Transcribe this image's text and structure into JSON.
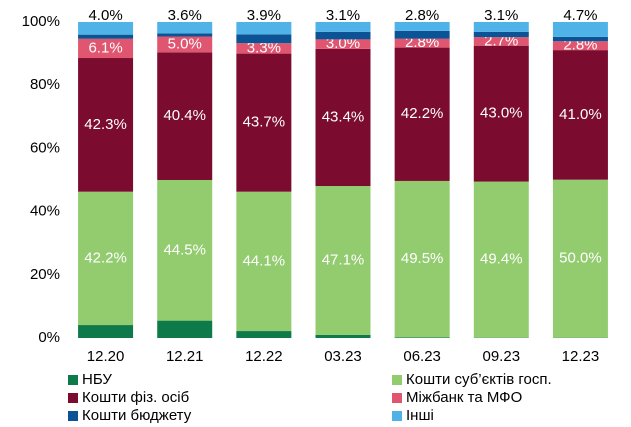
{
  "chart_data": {
    "type": "stacked_bar",
    "categories": [
      "12.20",
      "12.21",
      "12.22",
      "03.23",
      "06.23",
      "09.23",
      "12.23"
    ],
    "ylim": [
      0,
      100
    ],
    "yticks": [
      {
        "value": 0,
        "label": "0%"
      },
      {
        "value": 20,
        "label": "20%"
      },
      {
        "value": 40,
        "label": "40%"
      },
      {
        "value": 60,
        "label": "60%"
      },
      {
        "value": 80,
        "label": "80%"
      },
      {
        "value": 100,
        "label": "100%"
      }
    ],
    "series": [
      {
        "name": "НБУ",
        "color": "#0e7a4a",
        "values": [
          4.1,
          5.5,
          2.2,
          1.0,
          0.2,
          0.1,
          0.1
        ]
      },
      {
        "name": "Кошти суб’єктів госп.",
        "color": "#92cc6f",
        "values": [
          42.2,
          44.5,
          44.1,
          47.1,
          49.5,
          49.4,
          50.0
        ],
        "value_labels": [
          "42.2%",
          "44.5%",
          "44.1%",
          "47.1%",
          "49.5%",
          "49.4%",
          "50.0%"
        ]
      },
      {
        "name": "Кошти фіз. осіб",
        "color": "#7b0b2f",
        "values": [
          42.3,
          40.4,
          43.7,
          43.4,
          42.2,
          43.0,
          41.0
        ],
        "value_labels": [
          "42.3%",
          "40.4%",
          "43.7%",
          "43.4%",
          "42.2%",
          "43.0%",
          "41.0%"
        ]
      },
      {
        "name": "Міжбанк та МФО",
        "color": "#e05670",
        "values": [
          6.1,
          5.0,
          3.3,
          3.0,
          2.8,
          2.7,
          2.8
        ],
        "value_labels": [
          "6.1%",
          "5.0%",
          "3.3%",
          "3.0%",
          "2.8%",
          "2.7%",
          "2.8%"
        ]
      },
      {
        "name": "Кошти бюджету",
        "color": "#0b5394",
        "values": [
          1.3,
          1.0,
          2.8,
          2.4,
          2.5,
          1.7,
          1.4
        ]
      },
      {
        "name": "Інші",
        "color": "#4fb3e8",
        "values": [
          4.0,
          3.6,
          3.9,
          3.1,
          2.8,
          3.1,
          4.7
        ],
        "value_labels": [
          "4.0%",
          "3.6%",
          "3.9%",
          "3.1%",
          "2.8%",
          "3.1%",
          "4.7%"
        ]
      }
    ]
  }
}
